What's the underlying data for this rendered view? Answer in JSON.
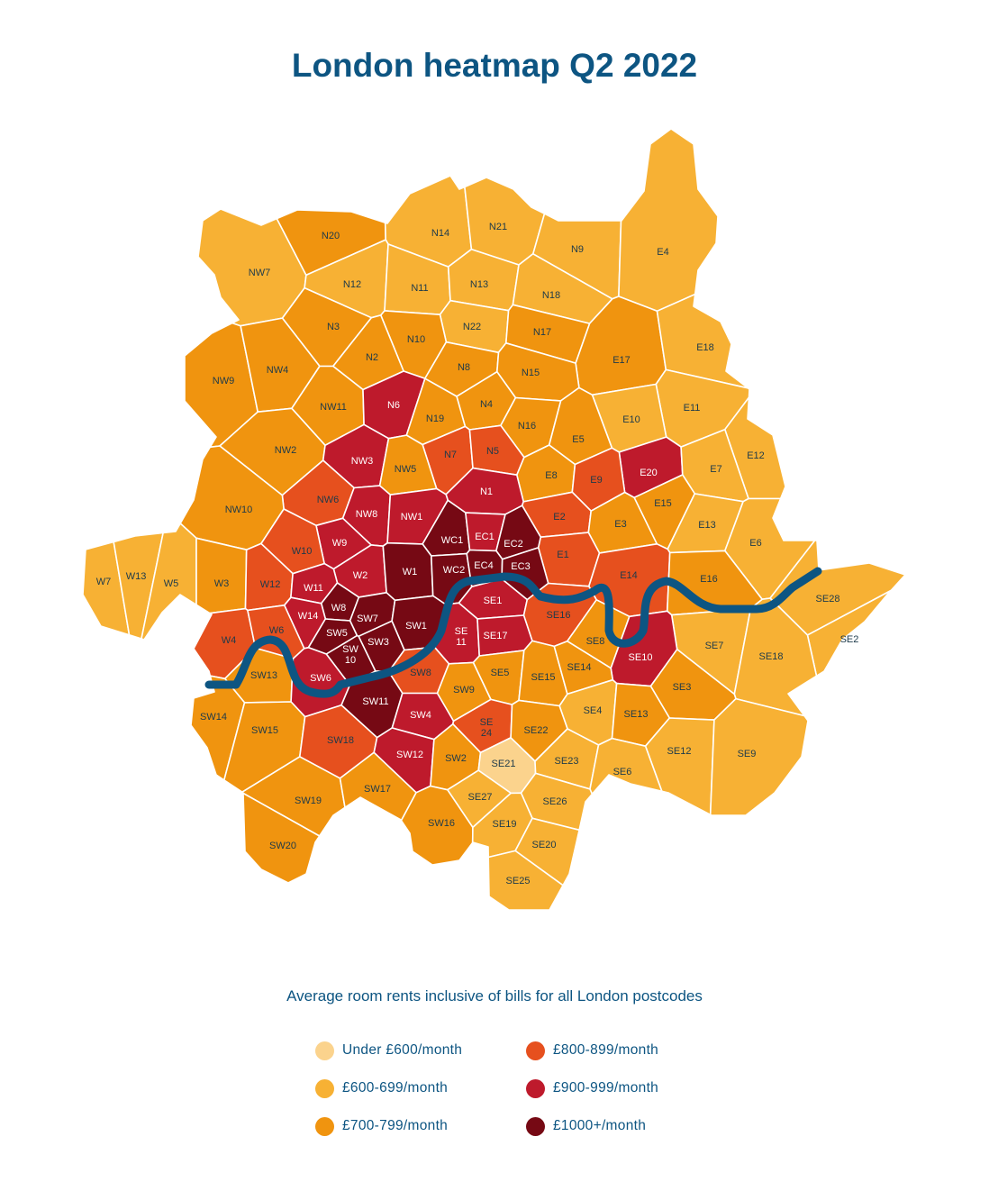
{
  "title": "London heatmap Q2 2022",
  "subtitle": "Average room rents inclusive of bills for all London postcodes",
  "colors": {
    "under600": "#fbd38d",
    "600to699": "#f7b134",
    "700to799": "#f0940f",
    "800to899": "#e6501e",
    "900to999": "#be1a2c",
    "1000plus": "#760914",
    "river": "#0d5582"
  },
  "legend": [
    {
      "label": "Under £600/month",
      "band": "under600"
    },
    {
      "label": "£800-899/month",
      "band": "800to899"
    },
    {
      "label": "£600-699/month",
      "band": "600to699"
    },
    {
      "label": "£900-999/month",
      "band": "900to999"
    },
    {
      "label": "£700-799/month",
      "band": "700to799"
    },
    {
      "label": "£1000+/month",
      "band": "1000plus"
    }
  ],
  "postcodes": [
    {
      "code": "NW7",
      "band": "600to699"
    },
    {
      "code": "N20",
      "band": "700to799"
    },
    {
      "code": "N14",
      "band": "600to699"
    },
    {
      "code": "N21",
      "band": "600to699"
    },
    {
      "code": "N9",
      "band": "600to699"
    },
    {
      "code": "E4",
      "band": "600to699"
    },
    {
      "code": "N12",
      "band": "600to699"
    },
    {
      "code": "N11",
      "band": "600to699"
    },
    {
      "code": "N13",
      "band": "600to699"
    },
    {
      "code": "N18",
      "band": "600to699"
    },
    {
      "code": "N3",
      "band": "700to799"
    },
    {
      "code": "N22",
      "band": "600to699"
    },
    {
      "code": "N17",
      "band": "700to799"
    },
    {
      "code": "E17",
      "band": "700to799"
    },
    {
      "code": "E18",
      "band": "600to699"
    },
    {
      "code": "N10",
      "band": "700to799"
    },
    {
      "code": "N2",
      "band": "700to799"
    },
    {
      "code": "NW9",
      "band": "700to799"
    },
    {
      "code": "NW4",
      "band": "700to799"
    },
    {
      "code": "N8",
      "band": "700to799"
    },
    {
      "code": "N15",
      "band": "700to799"
    },
    {
      "code": "NW11",
      "band": "700to799"
    },
    {
      "code": "N6",
      "band": "900to999"
    },
    {
      "code": "N4",
      "band": "700to799"
    },
    {
      "code": "E11",
      "band": "600to699"
    },
    {
      "code": "E10",
      "band": "600to699"
    },
    {
      "code": "N19",
      "band": "700to799"
    },
    {
      "code": "N16",
      "band": "700to799"
    },
    {
      "code": "NW2",
      "band": "700to799"
    },
    {
      "code": "E5",
      "band": "700to799"
    },
    {
      "code": "NW3",
      "band": "900to999"
    },
    {
      "code": "N7",
      "band": "800to899"
    },
    {
      "code": "N5",
      "band": "800to899"
    },
    {
      "code": "E12",
      "band": "600to699"
    },
    {
      "code": "NW5",
      "band": "700to799"
    },
    {
      "code": "E20",
      "band": "900to999"
    },
    {
      "code": "E7",
      "band": "600to699"
    },
    {
      "code": "E8",
      "band": "700to799"
    },
    {
      "code": "E9",
      "band": "800to899"
    },
    {
      "code": "N1",
      "band": "900to999"
    },
    {
      "code": "E15",
      "band": "700to799"
    },
    {
      "code": "NW6",
      "band": "800to899"
    },
    {
      "code": "NW10",
      "band": "700to799"
    },
    {
      "code": "NW8",
      "band": "900to999"
    },
    {
      "code": "NW1",
      "band": "900to999"
    },
    {
      "code": "E2",
      "band": "800to899"
    },
    {
      "code": "E3",
      "band": "700to799"
    },
    {
      "code": "E13",
      "band": "600to699"
    },
    {
      "code": "E6",
      "band": "600to699"
    },
    {
      "code": "W9",
      "band": "900to999"
    },
    {
      "code": "WC1",
      "band": "1000plus"
    },
    {
      "code": "EC1",
      "band": "900to999"
    },
    {
      "code": "EC2",
      "band": "1000plus"
    },
    {
      "code": "W10",
      "band": "800to899"
    },
    {
      "code": "E1",
      "band": "800to899"
    },
    {
      "code": "W7",
      "band": "600to699"
    },
    {
      "code": "W13",
      "band": "600to699"
    },
    {
      "code": "W5",
      "band": "600to699"
    },
    {
      "code": "W3",
      "band": "700to799"
    },
    {
      "code": "W12",
      "band": "800to899"
    },
    {
      "code": "W2",
      "band": "900to999"
    },
    {
      "code": "W1",
      "band": "1000plus"
    },
    {
      "code": "WC2",
      "band": "1000plus"
    },
    {
      "code": "EC4",
      "band": "1000plus"
    },
    {
      "code": "EC3",
      "band": "1000plus"
    },
    {
      "code": "E14",
      "band": "800to899"
    },
    {
      "code": "E16",
      "band": "700to799"
    },
    {
      "code": "W11",
      "band": "900to999"
    },
    {
      "code": "SE28",
      "band": "600to699"
    },
    {
      "code": "SE1",
      "band": "900to999"
    },
    {
      "code": "W8",
      "band": "1000plus"
    },
    {
      "code": "SE16",
      "band": "800to899"
    },
    {
      "code": "W4",
      "band": "800to899"
    },
    {
      "code": "W14",
      "band": "900to999"
    },
    {
      "code": "W6",
      "band": "800to899"
    },
    {
      "code": "SW7",
      "band": "1000plus"
    },
    {
      "code": "SW1",
      "band": "1000plus"
    },
    {
      "code": "SE 11",
      "band": "900to999"
    },
    {
      "code": "SE17",
      "band": "900to999"
    },
    {
      "code": "SE8",
      "band": "700to799"
    },
    {
      "code": "SE2",
      "band": "600to699"
    },
    {
      "code": "SW5",
      "band": "1000plus"
    },
    {
      "code": "SW3",
      "band": "1000plus"
    },
    {
      "code": "SE7",
      "band": "600to699"
    },
    {
      "code": "SE18",
      "band": "600to699"
    },
    {
      "code": "SW 10",
      "band": "1000plus"
    },
    {
      "code": "SE10",
      "band": "900to999"
    },
    {
      "code": "SW13",
      "band": "700to799"
    },
    {
      "code": "SW6",
      "band": "900to999"
    },
    {
      "code": "SE5",
      "band": "700to799"
    },
    {
      "code": "SE15",
      "band": "700to799"
    },
    {
      "code": "SE14",
      "band": "700to799"
    },
    {
      "code": "SW8",
      "band": "800to899"
    },
    {
      "code": "SE3",
      "band": "700to799"
    },
    {
      "code": "SW14",
      "band": "700to799"
    },
    {
      "code": "SW11",
      "band": "1000plus"
    },
    {
      "code": "SW9",
      "band": "700to799"
    },
    {
      "code": "SE4",
      "band": "600to699"
    },
    {
      "code": "SE13",
      "band": "700to799"
    },
    {
      "code": "SW15",
      "band": "700to799"
    },
    {
      "code": "SW4",
      "band": "900to999"
    },
    {
      "code": "SE 24",
      "band": "800to899"
    },
    {
      "code": "SE22",
      "band": "700to799"
    },
    {
      "code": "SW18",
      "band": "800to899"
    },
    {
      "code": "SE12",
      "band": "600to699"
    },
    {
      "code": "SE9",
      "band": "600to699"
    },
    {
      "code": "SW12",
      "band": "900to999"
    },
    {
      "code": "SW2",
      "band": "700to799"
    },
    {
      "code": "SE21",
      "band": "under600"
    },
    {
      "code": "SE23",
      "band": "600to699"
    },
    {
      "code": "SE6",
      "band": "600to699"
    },
    {
      "code": "SW19",
      "band": "700to799"
    },
    {
      "code": "SW17",
      "band": "700to799"
    },
    {
      "code": "SE27",
      "band": "600to699"
    },
    {
      "code": "SE26",
      "band": "600to699"
    },
    {
      "code": "SW16",
      "band": "700to799"
    },
    {
      "code": "SE19",
      "band": "600to699"
    },
    {
      "code": "SE20",
      "band": "600to699"
    },
    {
      "code": "SW20",
      "band": "700to799"
    },
    {
      "code": "SE25",
      "band": "600to699"
    }
  ]
}
